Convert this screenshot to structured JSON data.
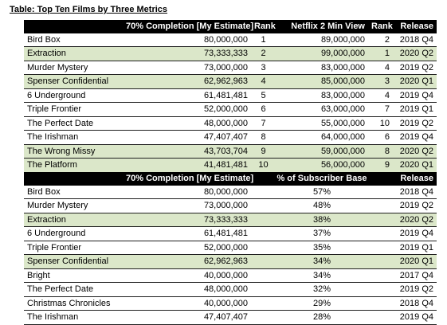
{
  "title": "Table: Top Ten Films by Three Metrics",
  "colors": {
    "header_bg": "#000000",
    "header_text": "#ffffff",
    "highlight_row": "#dbe7c9",
    "row_rule": "#1f1f1f"
  },
  "table1": {
    "headers": [
      "",
      "70% Completion [My Estimate]",
      "Rank",
      "Netflix 2 Min View",
      "Rank",
      "Release"
    ],
    "rows": [
      {
        "title": "Bird Box",
        "completion": "80,000,000",
        "rank1": "1",
        "netflix": "89,000,000",
        "rank2": "2",
        "release": "2018 Q4",
        "highlight": false
      },
      {
        "title": "Extraction",
        "completion": "73,333,333",
        "rank1": "2",
        "netflix": "99,000,000",
        "rank2": "1",
        "release": "2020 Q2",
        "highlight": true
      },
      {
        "title": "Murder Mystery",
        "completion": "73,000,000",
        "rank1": "3",
        "netflix": "83,000,000",
        "rank2": "4",
        "release": "2019 Q2",
        "highlight": false
      },
      {
        "title": "Spenser Confidential",
        "completion": "62,962,963",
        "rank1": "4",
        "netflix": "85,000,000",
        "rank2": "3",
        "release": "2020 Q1",
        "highlight": true
      },
      {
        "title": "6 Underground",
        "completion": "61,481,481",
        "rank1": "5",
        "netflix": "83,000,000",
        "rank2": "4",
        "release": "2019 Q4",
        "highlight": false
      },
      {
        "title": "Triple Frontier",
        "completion": "52,000,000",
        "rank1": "6",
        "netflix": "63,000,000",
        "rank2": "7",
        "release": "2019 Q1",
        "highlight": false
      },
      {
        "title": "The Perfect Date",
        "completion": "48,000,000",
        "rank1": "7",
        "netflix": "55,000,000",
        "rank2": "10",
        "release": "2019 Q2",
        "highlight": false
      },
      {
        "title": "The Irishman",
        "completion": "47,407,407",
        "rank1": "8",
        "netflix": "64,000,000",
        "rank2": "6",
        "release": "2019 Q4",
        "highlight": false
      },
      {
        "title": "The Wrong Missy",
        "completion": "43,703,704",
        "rank1": "9",
        "netflix": "59,000,000",
        "rank2": "8",
        "release": "2020 Q2",
        "highlight": true
      },
      {
        "title": "The Platform",
        "completion": "41,481,481",
        "rank1": "10",
        "netflix": "56,000,000",
        "rank2": "9",
        "release": "2020 Q1",
        "highlight": true
      }
    ]
  },
  "table2": {
    "headers": [
      "",
      "70% Completion [My Estimate]",
      "% of Subscriber Base",
      "Release"
    ],
    "rows": [
      {
        "title": "Bird Box",
        "completion": "80,000,000",
        "pct": "57%",
        "release": "2018 Q4",
        "highlight": false
      },
      {
        "title": "Murder Mystery",
        "completion": "73,000,000",
        "pct": "48%",
        "release": "2019 Q2",
        "highlight": false
      },
      {
        "title": "Extraction",
        "completion": "73,333,333",
        "pct": "38%",
        "release": "2020 Q2",
        "highlight": true
      },
      {
        "title": "6 Underground",
        "completion": "61,481,481",
        "pct": "37%",
        "release": "2019 Q4",
        "highlight": false
      },
      {
        "title": "Triple Frontier",
        "completion": "52,000,000",
        "pct": "35%",
        "release": "2019 Q1",
        "highlight": false
      },
      {
        "title": "Spenser Confidential",
        "completion": "62,962,963",
        "pct": "34%",
        "release": "2020 Q1",
        "highlight": true
      },
      {
        "title": "Bright",
        "completion": "40,000,000",
        "pct": "34%",
        "release": "2017 Q4",
        "highlight": false
      },
      {
        "title": "The Perfect Date",
        "completion": "48,000,000",
        "pct": "32%",
        "release": "2019 Q2",
        "highlight": false
      },
      {
        "title": "Christmas Chronicles",
        "completion": "40,000,000",
        "pct": "29%",
        "release": "2018 Q4",
        "highlight": false
      },
      {
        "title": "The Irishman",
        "completion": "47,407,407",
        "pct": "28%",
        "release": "2019 Q4",
        "highlight": false
      }
    ]
  }
}
